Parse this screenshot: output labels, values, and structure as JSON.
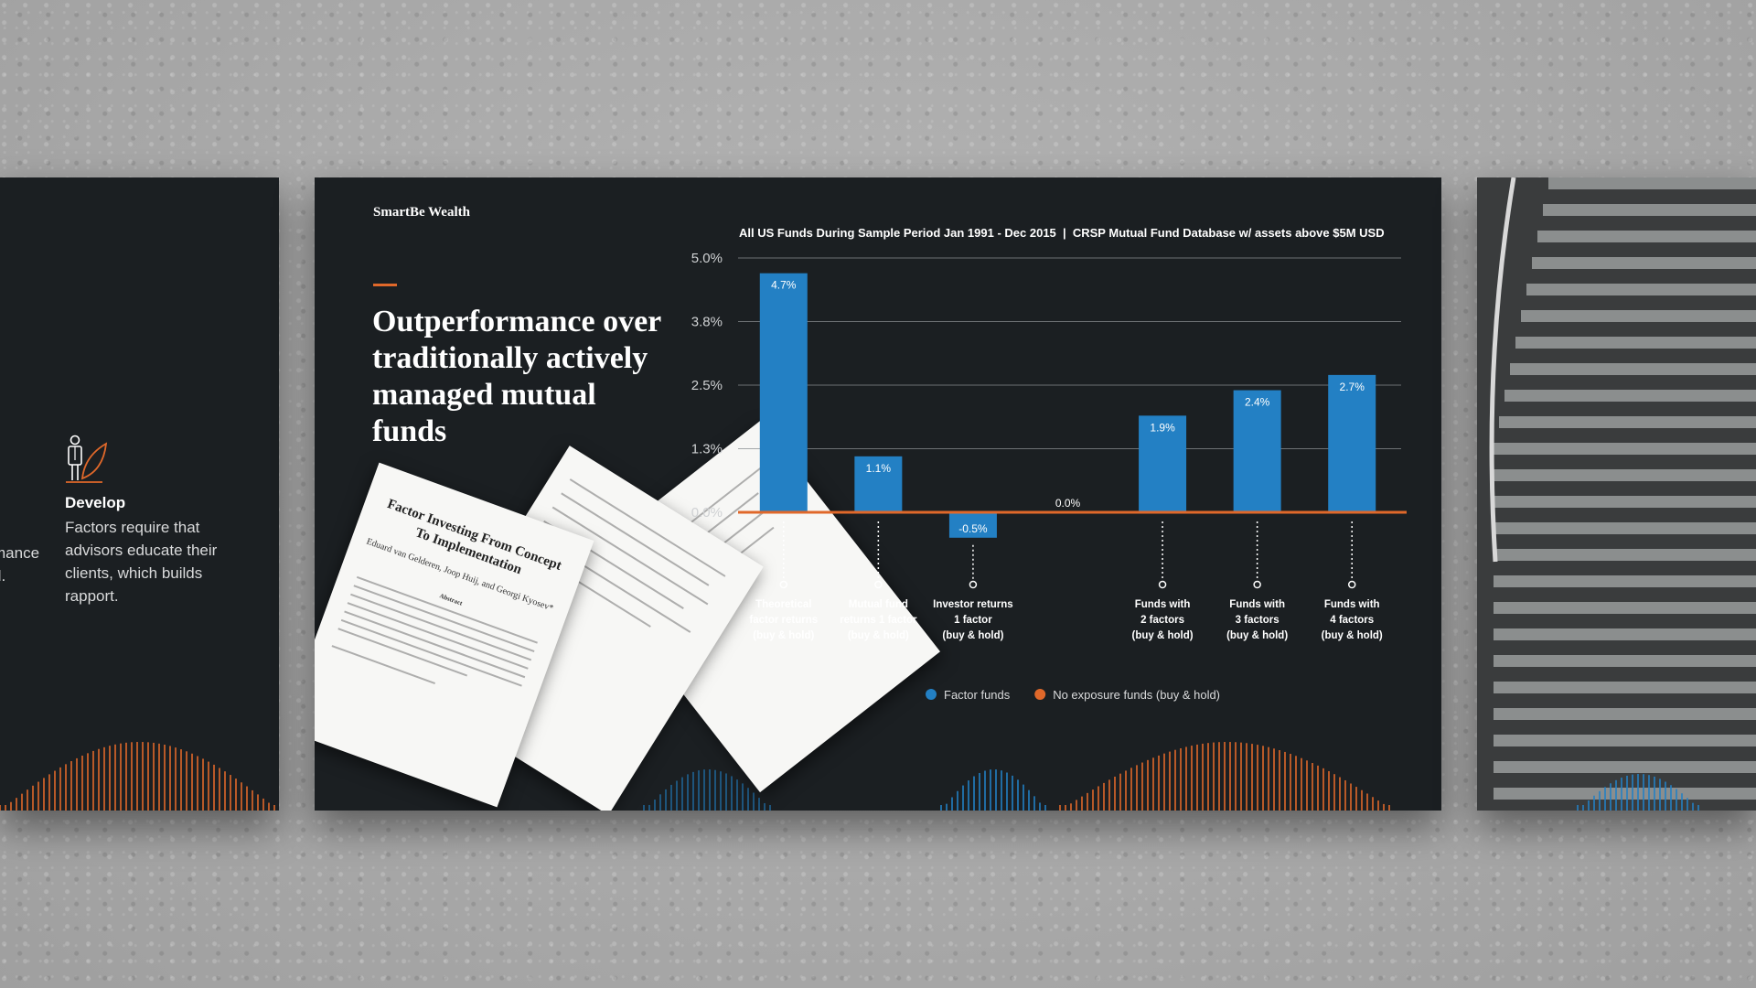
{
  "left_panel": {
    "icon": "person-leaf-icon",
    "title": "Develop",
    "text": "Factors require that advisors educate their clients, which builds rapport.",
    "cut_text": "mance\nd."
  },
  "main_panel": {
    "brand": "SmartBe Wealth",
    "headline": "Outperformance over traditionally actively managed mutual funds",
    "documents": {
      "title": "Factor Investing From Concept To Implementation",
      "authors": "Eduard van Gelderen, Joop Huij, and Georgi Kyosev*",
      "abstract_heading": "Abstract"
    }
  },
  "colors": {
    "background": "#1b1f22",
    "factor_funds": "#2380c4",
    "no_exposure": "#e0682a"
  },
  "chart_data": {
    "type": "bar",
    "title": "All US Funds During Sample Period Jan 1991 - Dec 2015  |  CRSP Mutual Fund Database w/ assets above $5M USD",
    "y_ticks": [
      "5.0%",
      "3.8%",
      "2.5%",
      "1.3%",
      "0.0%"
    ],
    "ylim": [
      0,
      5.0
    ],
    "grid": true,
    "legend_position": "bottom-center",
    "categories": [
      [
        "Theoretical",
        "factor returns",
        "(buy & hold)"
      ],
      [
        "Mutual fund",
        "returns 1 factor",
        "(buy & hold)"
      ],
      [
        "Investor returns",
        "1 factor",
        "(buy & hold)"
      ],
      [],
      [
        "Funds with",
        "2 factors",
        "(buy & hold)"
      ],
      [
        "Funds with",
        "3 factors",
        "(buy & hold)"
      ],
      [
        "Funds with",
        "4 factors",
        "(buy & hold)"
      ]
    ],
    "values": [
      4.7,
      1.1,
      -0.5,
      0.0,
      1.9,
      2.4,
      2.7
    ],
    "labels": [
      "4.7%",
      "1.1%",
      "-0.5%",
      "0.0%",
      "1.9%",
      "2.4%",
      "2.7%"
    ],
    "series": [
      {
        "name": "Factor funds",
        "color": "#2380c4"
      },
      {
        "name": "No exposure funds (buy & hold)",
        "color": "#e0682a"
      }
    ]
  }
}
